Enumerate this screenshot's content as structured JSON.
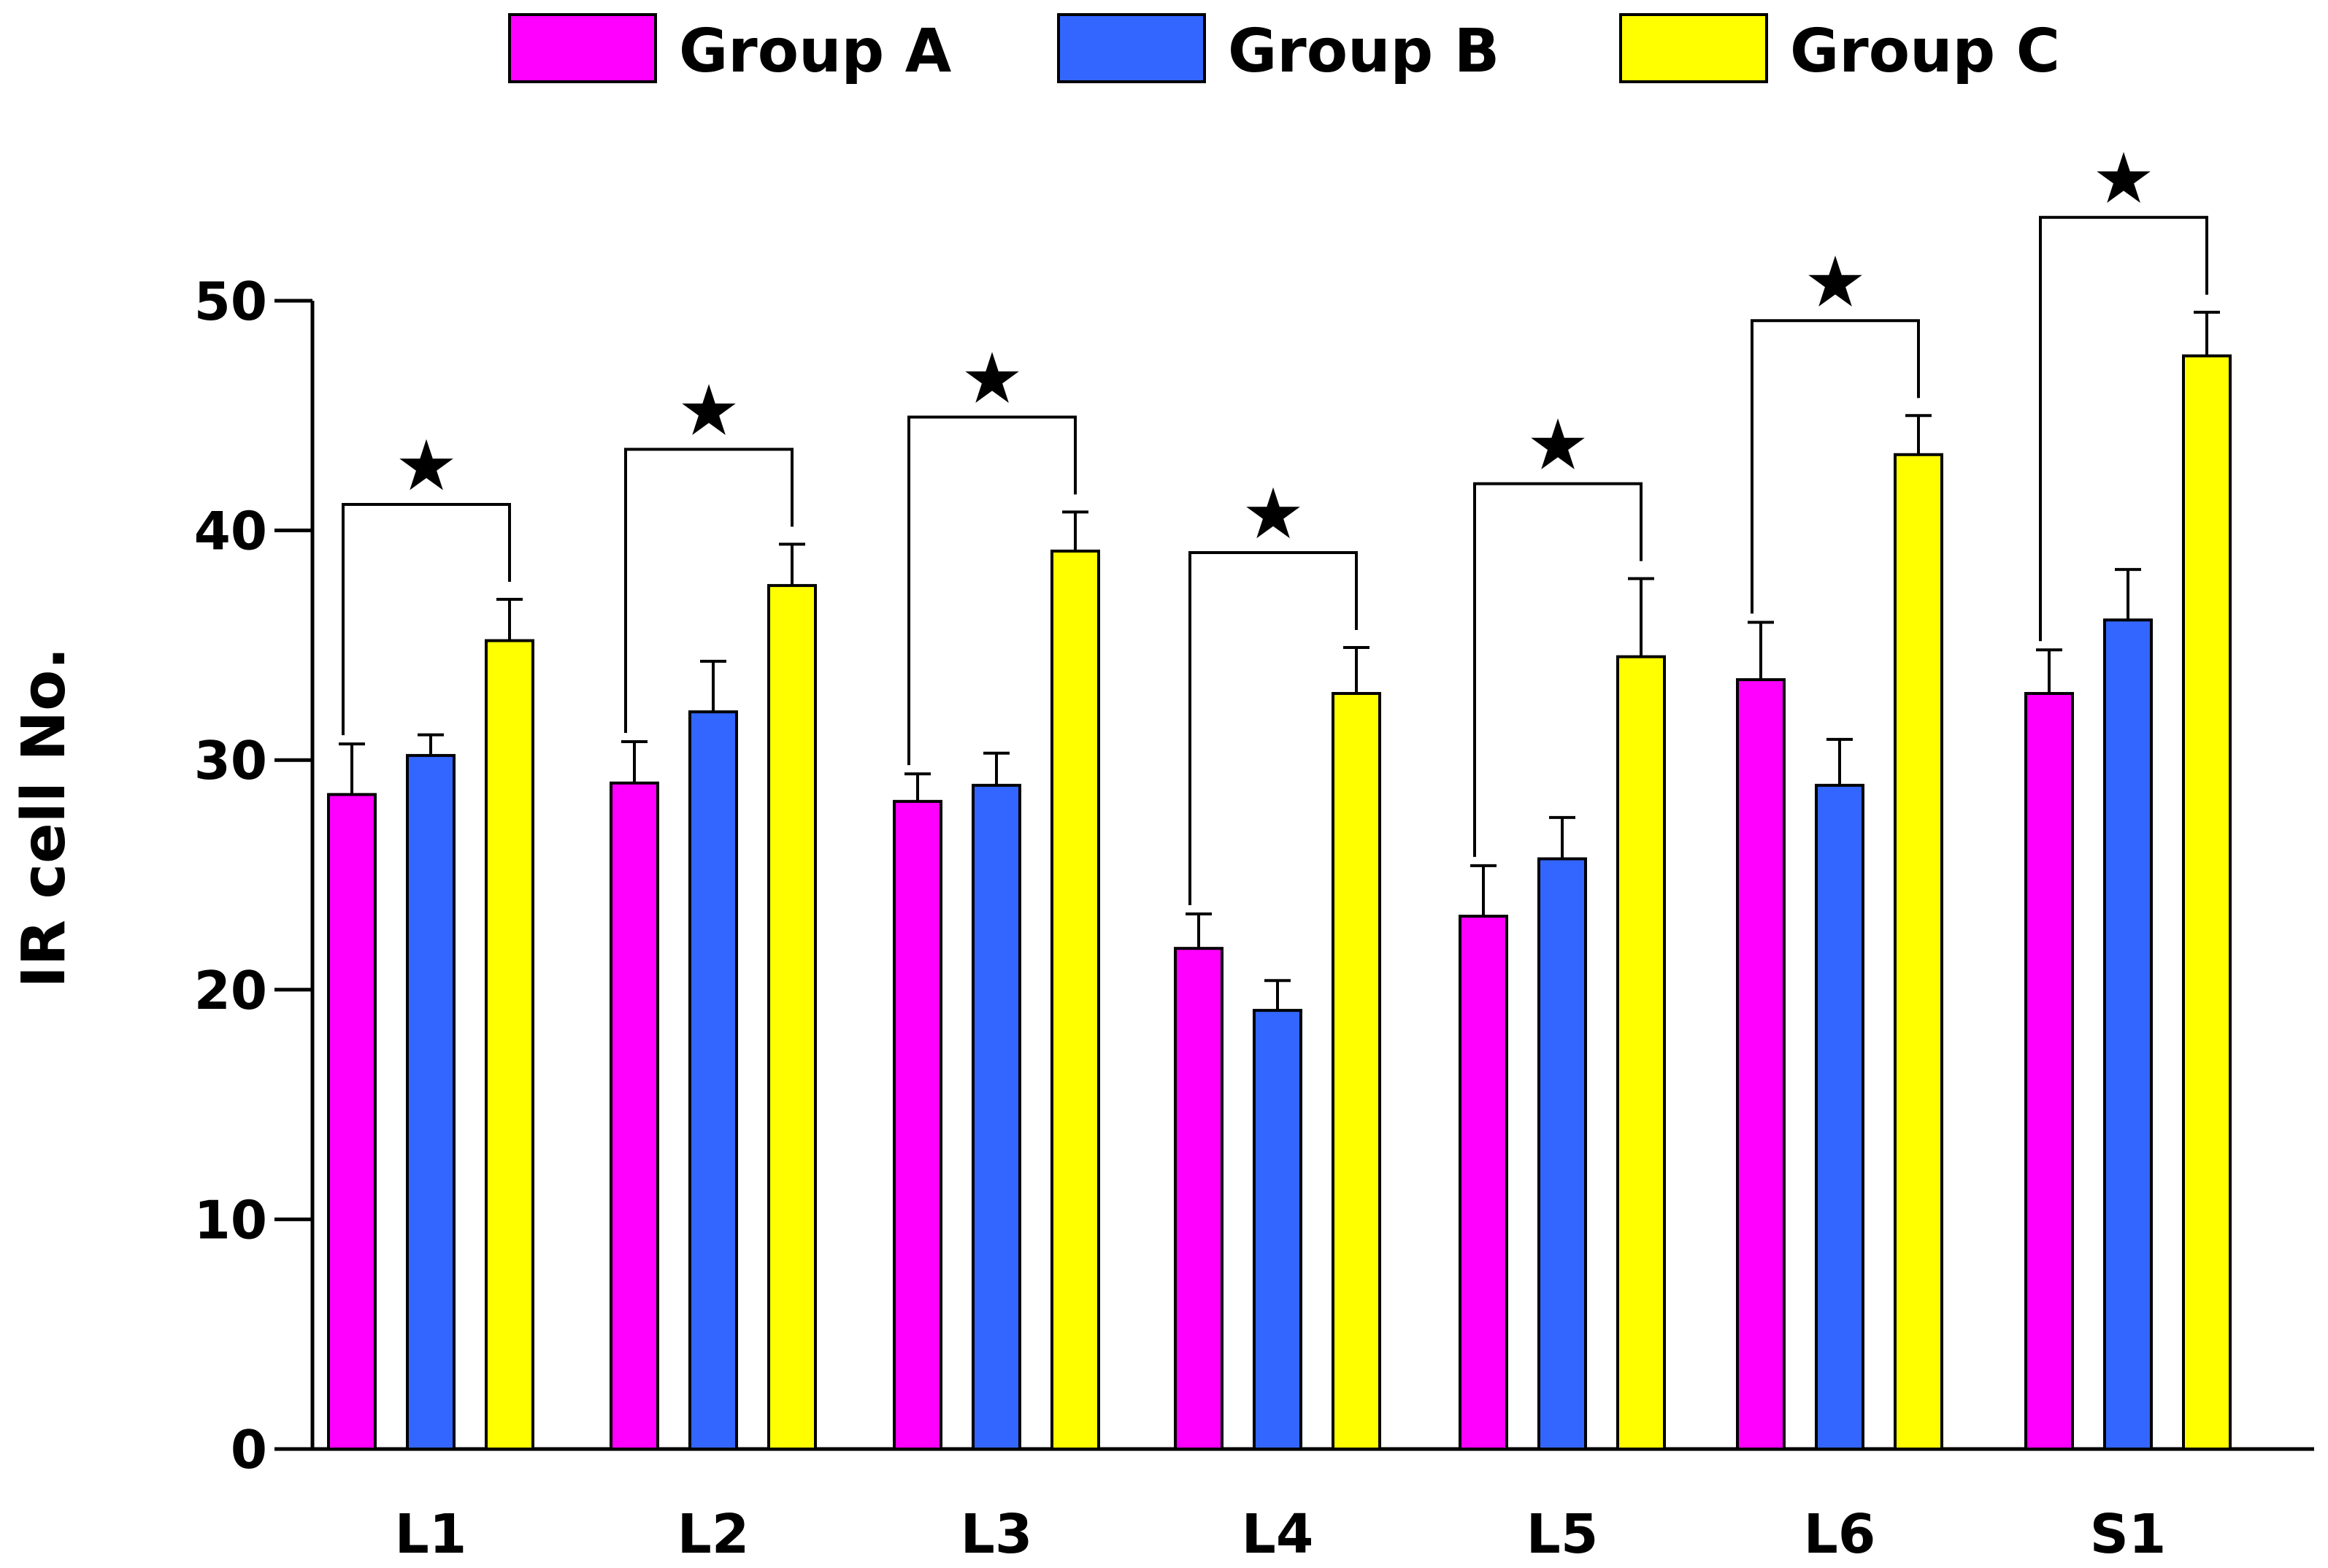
{
  "chart_data": {
    "type": "bar",
    "title": "",
    "xlabel": "",
    "ylabel": "IR cell No.",
    "ylim": [
      0,
      50
    ],
    "yticks": [
      0,
      10,
      20,
      30,
      40,
      50
    ],
    "categories": [
      "L1",
      "L2",
      "L3",
      "L4",
      "L5",
      "L6",
      "S1"
    ],
    "series": [
      {
        "name": "Group A",
        "color": "#ff00ff",
        "values": [
          28.5,
          29.0,
          28.2,
          21.8,
          23.2,
          33.5,
          32.9
        ],
        "errors": [
          2.2,
          1.8,
          1.2,
          1.5,
          2.2,
          2.5,
          1.9
        ]
      },
      {
        "name": "Group B",
        "color": "#3366ff",
        "values": [
          30.2,
          32.1,
          28.9,
          19.1,
          25.7,
          28.9,
          36.1
        ],
        "errors": [
          0.9,
          2.2,
          1.4,
          1.3,
          1.8,
          2.0,
          2.2
        ]
      },
      {
        "name": "Group C",
        "color": "#ffff00",
        "values": [
          35.2,
          37.6,
          39.1,
          32.9,
          34.5,
          43.3,
          47.6
        ],
        "errors": [
          1.8,
          1.8,
          1.7,
          2.0,
          3.4,
          1.7,
          1.9
        ]
      }
    ],
    "significance": [
      {
        "category": "L1",
        "between": [
          "Group A",
          "Group C"
        ],
        "marker": "★"
      },
      {
        "category": "L2",
        "between": [
          "Group A",
          "Group C"
        ],
        "marker": "★"
      },
      {
        "category": "L3",
        "between": [
          "Group A",
          "Group C"
        ],
        "marker": "★"
      },
      {
        "category": "L4",
        "between": [
          "Group A",
          "Group C"
        ],
        "marker": "★"
      },
      {
        "category": "L5",
        "between": [
          "Group A",
          "Group C"
        ],
        "marker": "★"
      },
      {
        "category": "L6",
        "between": [
          "Group A",
          "Group C"
        ],
        "marker": "★"
      },
      {
        "category": "S1",
        "between": [
          "Group A",
          "Group C"
        ],
        "marker": "★"
      }
    ],
    "legend_position": "top-center",
    "grid": false
  }
}
